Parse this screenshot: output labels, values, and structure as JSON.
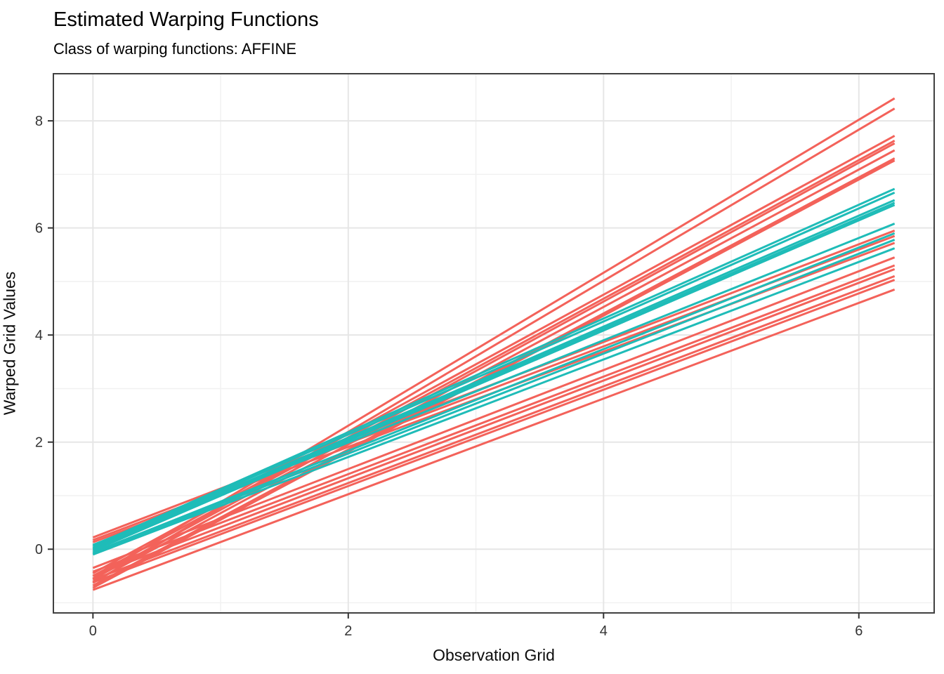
{
  "chart_data": {
    "type": "line",
    "title": "Estimated Warping Functions",
    "subtitle": "Class of warping functions: AFFINE",
    "xlabel": "Observation Grid",
    "ylabel": "Warped Grid Values",
    "x_ticks_major": [
      0,
      2,
      4,
      6
    ],
    "x_ticks_minor": [
      1,
      3,
      5
    ],
    "y_ticks_major": [
      0,
      2,
      4,
      6,
      8
    ],
    "y_ticks_minor": [
      -1,
      1,
      3,
      5,
      7
    ],
    "xlim": [
      -0.31,
      6.59
    ],
    "ylim": [
      -1.19,
      8.88
    ],
    "x_start": 0,
    "x_end": 6.28,
    "legend": "none",
    "grid": "on",
    "colors": {
      "red": "#F3625A",
      "teal": "#1FBCB8"
    },
    "panel_border_color": "#404040",
    "grid_major_color": "#E6E6E6",
    "grid_minor_color": "#F1F1F1",
    "tick_color": "#333333",
    "lines": [
      {
        "color": "red",
        "start": -0.55,
        "end": 8.42
      },
      {
        "color": "red",
        "start": -0.63,
        "end": 8.23
      },
      {
        "color": "red",
        "start": -0.45,
        "end": 7.72
      },
      {
        "color": "red",
        "start": -0.5,
        "end": 7.63
      },
      {
        "color": "red",
        "start": -0.56,
        "end": 7.58
      },
      {
        "color": "red",
        "start": -0.61,
        "end": 7.45
      },
      {
        "color": "red",
        "start": -0.68,
        "end": 7.3
      },
      {
        "color": "red",
        "start": -0.72,
        "end": 7.26
      },
      {
        "color": "red",
        "start": 0.22,
        "end": 5.95
      },
      {
        "color": "red",
        "start": 0.17,
        "end": 5.85
      },
      {
        "color": "red",
        "start": 0.13,
        "end": 5.72
      },
      {
        "color": "red",
        "start": -0.35,
        "end": 5.45
      },
      {
        "color": "red",
        "start": -0.42,
        "end": 5.3
      },
      {
        "color": "red",
        "start": -0.5,
        "end": 5.23
      },
      {
        "color": "red",
        "start": -0.57,
        "end": 5.1
      },
      {
        "color": "red",
        "start": -0.62,
        "end": 5.03
      },
      {
        "color": "red",
        "start": -0.76,
        "end": 4.85
      },
      {
        "color": "teal",
        "start": 0.06,
        "end": 6.73
      },
      {
        "color": "teal",
        "start": 0.03,
        "end": 6.66
      },
      {
        "color": "teal",
        "start": 0.01,
        "end": 6.52
      },
      {
        "color": "teal",
        "start": -0.01,
        "end": 6.47
      },
      {
        "color": "teal",
        "start": -0.03,
        "end": 6.43
      },
      {
        "color": "teal",
        "start": 0.08,
        "end": 6.08
      },
      {
        "color": "teal",
        "start": -0.06,
        "end": 5.9
      },
      {
        "color": "teal",
        "start": -0.08,
        "end": 5.78
      },
      {
        "color": "teal",
        "start": -0.1,
        "end": 5.62
      }
    ]
  }
}
